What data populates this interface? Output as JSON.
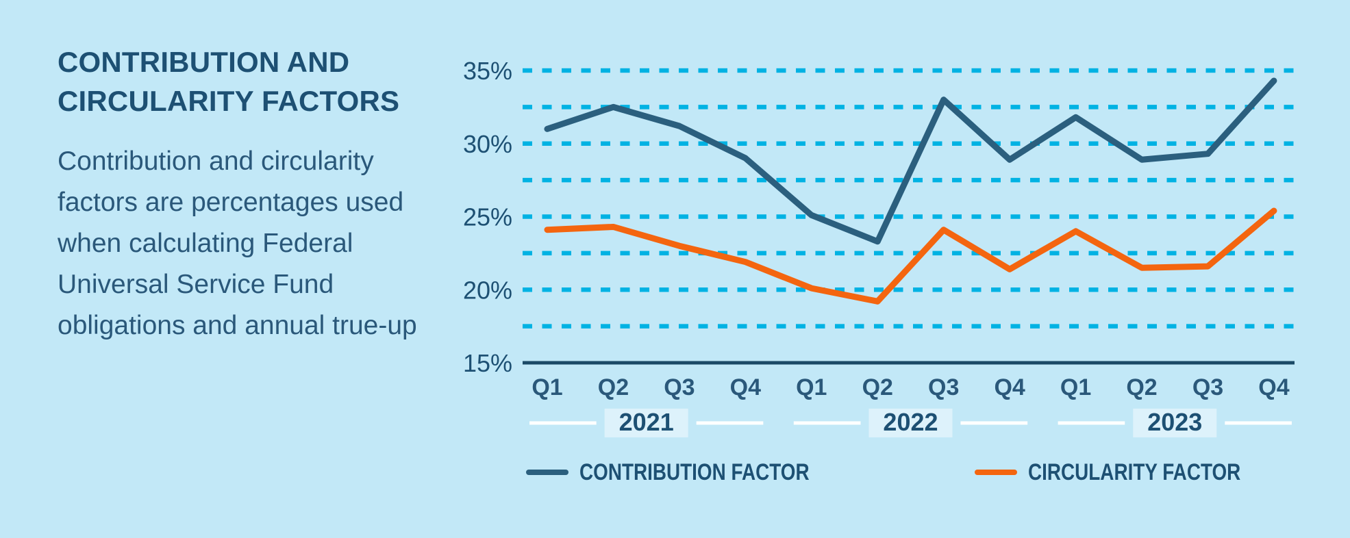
{
  "page": {
    "background_color": "#c2e8f7"
  },
  "panel": {
    "title": "CONTRIBUTION AND\nCIRCULARITY FACTORS",
    "description": "Contribution and circularity\nfactors are percentages used\nwhen calculating Federal\nUniversal Service Fund\nobligations and annual true-up"
  },
  "legend": {
    "items": [
      {
        "label": "CONTRIBUTION FACTOR",
        "color": "#2b5f7e"
      },
      {
        "label": "CIRCULARITY FACTOR",
        "color": "#f4650f"
      }
    ]
  },
  "chart_data": {
    "type": "line",
    "title": "CONTRIBUTION AND CIRCULARITY FACTORS",
    "x_categories": [
      "Q1",
      "Q2",
      "Q3",
      "Q4",
      "Q1",
      "Q2",
      "Q3",
      "Q4",
      "Q1",
      "Q2",
      "Q3",
      "Q4"
    ],
    "year_groups": [
      {
        "label": "2021",
        "start": 0,
        "end": 3
      },
      {
        "label": "2022",
        "start": 4,
        "end": 7
      },
      {
        "label": "2023",
        "start": 8,
        "end": 11
      }
    ],
    "series": [
      {
        "name": "CONTRIBUTION FACTOR",
        "color": "#2b5f7e",
        "values": [
          31.0,
          32.5,
          31.2,
          29.0,
          25.1,
          23.3,
          33.0,
          28.9,
          31.8,
          28.9,
          29.3,
          34.3
        ]
      },
      {
        "name": "CIRCULARITY FACTOR",
        "color": "#f4650f",
        "values": [
          24.1,
          24.3,
          23.0,
          21.9,
          20.1,
          19.2,
          24.1,
          21.4,
          24.0,
          21.5,
          21.6,
          25.4
        ]
      }
    ],
    "ylim": [
      15,
      35
    ],
    "y_major_ticks": [
      35,
      30,
      25,
      20,
      15
    ],
    "y_tick_suffix": "%",
    "y_gridline_step": 2.5,
    "grid_on": true,
    "grid_style": "dashed",
    "grid_color": "#00b2e3",
    "axis_color": "#1b4a66",
    "year_divider_color": "#ffffff",
    "legend_position": "bottom"
  }
}
